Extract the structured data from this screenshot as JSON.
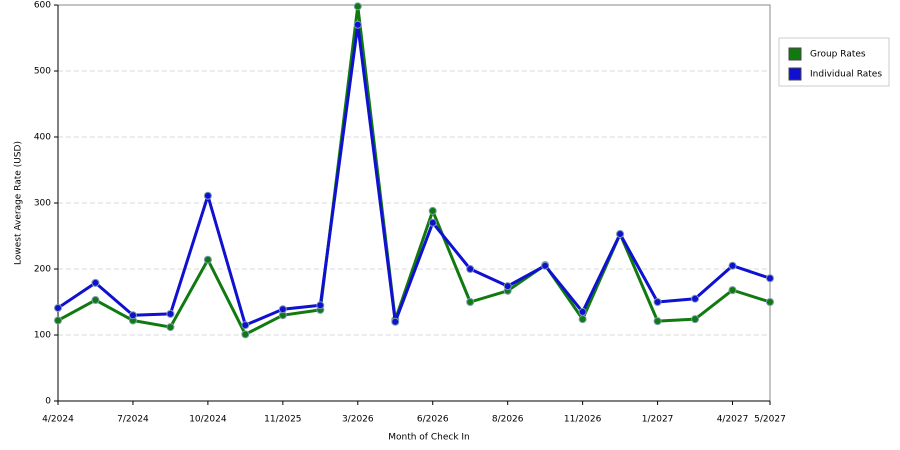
{
  "chart_data": {
    "type": "line",
    "xlabel": "Month of Check In",
    "ylabel": "Lowest Average Rate (USD)",
    "categories": [
      "4/2024",
      null,
      "7/2024",
      null,
      "10/2024",
      null,
      "11/2025",
      null,
      "3/2026",
      null,
      "6/2026",
      null,
      "8/2026",
      null,
      "11/2026",
      null,
      "1/2027",
      null,
      "4/2027",
      "5/2027"
    ],
    "series": [
      {
        "name": "Group Rates",
        "color": "#107a10",
        "values": [
          122,
          153,
          122,
          112,
          214,
          101,
          130,
          138,
          598,
          123,
          288,
          150,
          167,
          206,
          124,
          253,
          121,
          124,
          168,
          150
        ]
      },
      {
        "name": "Individual Rates",
        "color": "#1010d0",
        "values": [
          141,
          179,
          130,
          132,
          311,
          115,
          139,
          145,
          570,
          120,
          270,
          200,
          174,
          205,
          135,
          253,
          150,
          155,
          205,
          186
        ]
      }
    ],
    "ylim": [
      0,
      600
    ],
    "yticks": [
      0,
      100,
      200,
      300,
      400,
      500,
      600
    ],
    "grid": true,
    "legend": "right"
  }
}
